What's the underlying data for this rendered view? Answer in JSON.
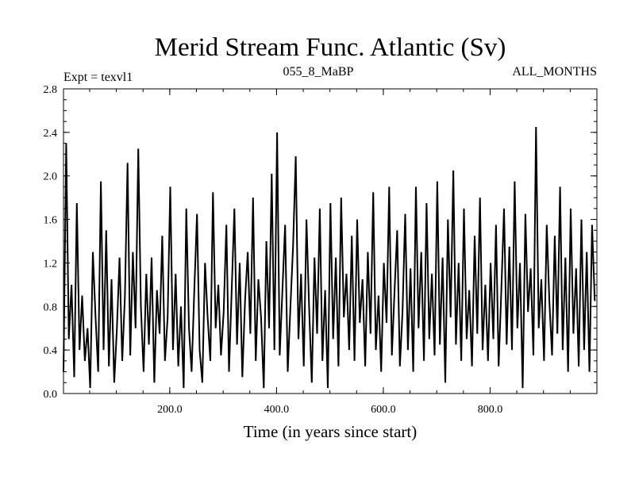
{
  "chart_data": {
    "type": "line",
    "title": "Merid Stream Func. Atlantic (Sv)",
    "experiment_label": "Expt = texvl1",
    "center_label": "055_8_MaBP",
    "right_label": "ALL_MONTHS",
    "xlabel": "Time (in years since start)",
    "ylabel": "",
    "xlim": [
      1,
      1000
    ],
    "ylim": [
      0.0,
      2.8
    ],
    "x_ticks": [
      200,
      400,
      600,
      800
    ],
    "x_tick_labels": [
      "200.0",
      "400.0",
      "600.0",
      "800.0"
    ],
    "y_ticks": [
      0.0,
      0.4,
      0.8,
      1.2,
      1.6,
      2.0,
      2.4,
      2.8
    ],
    "y_tick_labels": [
      "0.0",
      "0.4",
      "0.8",
      "1.2",
      "1.6",
      "2.0",
      "2.4",
      "2.8"
    ],
    "grid": false,
    "series": [
      {
        "color": "#000000",
        "x_start": 1,
        "x_step": 5,
        "values": [
          0.2,
          2.3,
          0.5,
          1.0,
          0.15,
          1.75,
          0.4,
          0.9,
          0.3,
          0.6,
          0.05,
          1.3,
          0.7,
          0.2,
          1.95,
          0.4,
          1.5,
          0.25,
          1.05,
          0.1,
          0.6,
          1.25,
          0.3,
          0.9,
          2.12,
          0.35,
          1.3,
          0.6,
          2.25,
          0.8,
          0.2,
          1.1,
          0.45,
          1.25,
          0.1,
          0.95,
          0.55,
          1.45,
          0.3,
          0.7,
          1.9,
          0.4,
          1.1,
          0.25,
          0.8,
          0.05,
          1.7,
          0.6,
          0.2,
          0.95,
          1.65,
          0.4,
          0.1,
          1.2,
          0.7,
          0.3,
          1.85,
          0.6,
          1.0,
          0.35,
          0.75,
          1.55,
          0.2,
          0.95,
          1.7,
          0.45,
          1.2,
          0.15,
          0.85,
          1.3,
          0.55,
          1.8,
          0.3,
          1.05,
          0.7,
          0.05,
          1.4,
          0.6,
          2.02,
          0.4,
          2.4,
          0.35,
          0.95,
          1.55,
          0.2,
          0.8,
          1.35,
          2.18,
          0.5,
          1.1,
          0.25,
          1.6,
          0.8,
          0.1,
          1.25,
          0.55,
          1.7,
          0.3,
          0.95,
          0.05,
          1.75,
          0.5,
          1.25,
          0.25,
          1.8,
          0.7,
          1.1,
          0.4,
          1.45,
          0.3,
          1.6,
          0.65,
          1.05,
          0.25,
          1.3,
          0.55,
          1.85,
          0.4,
          0.9,
          0.2,
          1.2,
          0.65,
          1.9,
          0.35,
          0.95,
          1.5,
          0.25,
          0.75,
          1.65,
          0.4,
          1.15,
          0.2,
          1.9,
          0.6,
          1.3,
          0.3,
          1.75,
          0.5,
          1.1,
          0.35,
          1.95,
          0.45,
          1.25,
          0.1,
          1.6,
          0.7,
          2.05,
          0.45,
          1.2,
          0.3,
          1.7,
          0.5,
          0.95,
          0.25,
          1.45,
          0.55,
          1.8,
          0.4,
          1.0,
          0.3,
          1.2,
          0.5,
          1.55,
          0.25,
          0.95,
          1.7,
          0.45,
          1.35,
          0.4,
          1.95,
          0.6,
          1.2,
          0.05,
          1.65,
          0.75,
          1.15,
          0.35,
          2.45,
          0.6,
          1.05,
          0.3,
          1.55,
          0.85,
          0.35,
          1.45,
          0.55,
          1.9,
          0.4,
          1.25,
          0.2,
          1.7,
          0.55,
          1.15,
          0.25,
          1.6,
          0.4,
          1.3,
          0.2,
          1.55,
          0.85
        ]
      }
    ]
  }
}
